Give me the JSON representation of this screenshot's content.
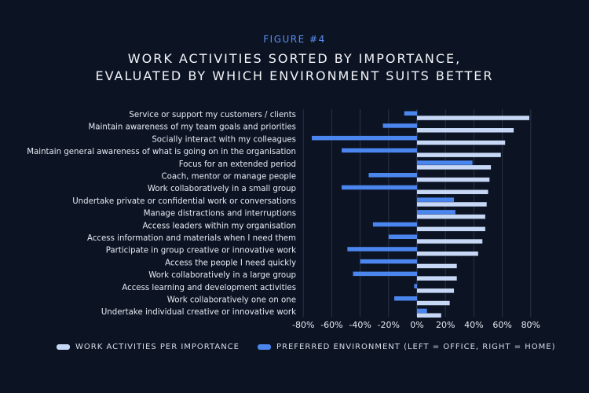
{
  "figure_label": "FIGURE #4",
  "title_lines": [
    "WORK ACTIVITIES SORTED BY IMPORTANCE,",
    "EVALUATED BY WHICH ENVIRONMENT SUITS BETTER"
  ],
  "colors": {
    "background": "#0c1424",
    "importance": "#c7d8f6",
    "environment": "#4b86ee",
    "gridline": "#2a3346",
    "accent": "#5b8def"
  },
  "legend": {
    "importance_label": "WORK ACTIVITIES PER IMPORTANCE",
    "environment_label": "PREFERRED ENVIRONMENT (LEFT = OFFICE, RIGHT = HOME)"
  },
  "chart_data": {
    "type": "bar",
    "orientation": "horizontal",
    "unit": "%",
    "xlim": [
      -80,
      80
    ],
    "xticks": [
      -80,
      -60,
      -40,
      -20,
      0,
      20,
      40,
      60,
      80
    ],
    "xtick_labels": [
      "-80%",
      "-60%",
      "-40%",
      "-20%",
      "0%",
      "20%",
      "40%",
      "60%",
      "80%"
    ],
    "grid": true,
    "legend_position": "bottom",
    "categories": [
      "Service or support my customers / clients",
      "Maintain awareness of my team goals and priorities",
      "Socially interact with my colleagues",
      "Maintain general awareness of what is going on in the organisation",
      "Focus for an extended period",
      "Coach, mentor or manage people",
      "Work collaboratively in a small group",
      "Undertake private or confidential work or conversations",
      "Manage distractions and interruptions",
      "Access leaders within my organisation",
      "Access information and materials when I need them",
      "Participate in group creative or innovative work",
      "Access the people I need quickly",
      "Work collaboratively in a large group",
      "Access learning and development activities",
      "Work collaboratively one on one",
      "Undertake individual creative or innovative work"
    ],
    "series": [
      {
        "name": "WORK ACTIVITIES PER IMPORTANCE",
        "values": [
          79,
          68,
          62,
          59,
          52,
          51,
          50,
          49,
          48,
          48,
          46,
          43,
          28,
          28,
          26,
          23,
          17
        ]
      },
      {
        "name": "PREFERRED ENVIRONMENT (LEFT = OFFICE, RIGHT = HOME)",
        "values": [
          -9,
          -24,
          -74,
          -53,
          39,
          -34,
          -53,
          26,
          27,
          -31,
          -20,
          -49,
          -40,
          -45,
          -2,
          -16,
          7
        ]
      }
    ]
  }
}
